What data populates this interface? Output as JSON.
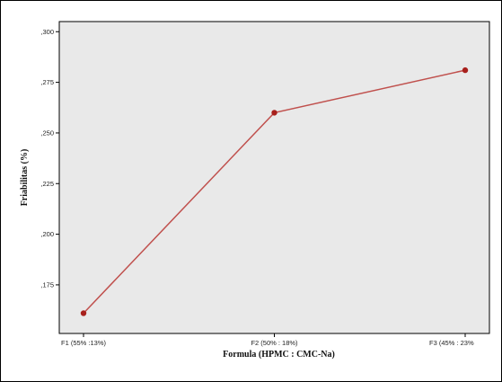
{
  "chart_data": {
    "type": "line",
    "categories": [
      "F1 (55% :13%)",
      "F2 (50% : 18%)",
      "F3 (45% : 23%"
    ],
    "values": [
      0.161,
      0.26,
      0.281
    ],
    "xlabel": "Formula (HPMC : CMC-Na)",
    "ylabel": "Friabilitas (%)",
    "ylim": [
      0.151,
      0.305
    ],
    "yticks": [
      0.175,
      0.2,
      0.225,
      0.25,
      0.275,
      0.3
    ],
    "ytick_labels": [
      ",175",
      ",200",
      ",225",
      ",250",
      ",275",
      ",300"
    ],
    "grid": false,
    "colors": {
      "plot_background": "#e9e9e9",
      "line": "#c0504d",
      "marker": "#a8201c"
    }
  }
}
